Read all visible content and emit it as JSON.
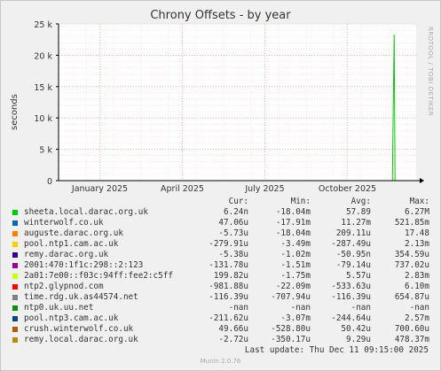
{
  "chart_data": {
    "type": "line",
    "title": "Chrony Offsets - by year",
    "ylabel": "seconds",
    "ylim": [
      0,
      25000
    ],
    "yticks": [
      0,
      5000,
      10000,
      15000,
      20000,
      25000
    ],
    "ytick_labels": [
      "0",
      "5 k",
      "10 k",
      "15 k",
      "20 k",
      "25 k"
    ],
    "xlim_months": [
      0,
      13
    ],
    "xticks": [
      {
        "label": "January 2025",
        "month": 1.5
      },
      {
        "label": "April 2025",
        "month": 4.5
      },
      {
        "label": "July 2025",
        "month": 7.5
      },
      {
        "label": "October 2025",
        "month": 10.5
      }
    ],
    "grid": true,
    "series": [
      {
        "name": "sheeta.local.darac.org.uk",
        "color": "#00cc00",
        "spike_month": 12.2,
        "spike_value": 23300
      }
    ]
  },
  "side_label": "RRDTOOL / TOBI OETIKER",
  "legend_header": {
    "cur": "Cur:",
    "min": "Min:",
    "avg": "Avg:",
    "max": "Max:"
  },
  "legend": [
    {
      "name": "sheeta.local.darac.org.uk",
      "color": "#00cc00",
      "cur": "6.24n",
      "min": "-18.04m",
      "avg": "57.89",
      "max": "6.27M"
    },
    {
      "name": "winterwolf.co.uk",
      "color": "#0066b3",
      "cur": "47.06u",
      "min": "-17.91m",
      "avg": "11.27m",
      "max": "521.85m"
    },
    {
      "name": "auguste.darac.org.uk",
      "color": "#ff8000",
      "cur": "-5.73u",
      "min": "-18.04m",
      "avg": "209.11u",
      "max": "17.48"
    },
    {
      "name": "pool.ntp1.cam.ac.uk",
      "color": "#ffcc00",
      "cur": "-279.91u",
      "min": "-3.49m",
      "avg": "-287.49u",
      "max": "2.13m"
    },
    {
      "name": "remy.darac.org.uk",
      "color": "#330099",
      "cur": "-5.38u",
      "min": "-1.02m",
      "avg": "-50.95n",
      "max": "354.59u"
    },
    {
      "name": "2001:470:1f1c:298::2:123",
      "color": "#990099",
      "cur": "-131.78u",
      "min": "-1.51m",
      "avg": "-79.14u",
      "max": "737.02u"
    },
    {
      "name": "2a01:7e00::f03c:94ff:fee2:c5ff",
      "color": "#ccff00",
      "cur": "199.82u",
      "min": "-1.75m",
      "avg": "5.57u",
      "max": "2.83m"
    },
    {
      "name": "ntp2.glypnod.com",
      "color": "#ff0000",
      "cur": "-981.88u",
      "min": "-22.09m",
      "avg": "-533.63u",
      "max": "6.10m"
    },
    {
      "name": "time.rdg.uk.as44574.net",
      "color": "#808080",
      "cur": "-116.39u",
      "min": "-707.94u",
      "avg": "-116.39u",
      "max": "654.87u"
    },
    {
      "name": "ntp0.uk.uu.net",
      "color": "#008f00",
      "cur": "-nan",
      "min": "-nan",
      "avg": "-nan",
      "max": "-nan"
    },
    {
      "name": "pool.ntp3.cam.ac.uk",
      "color": "#00487d",
      "cur": "-211.62u",
      "min": "-3.07m",
      "avg": "-244.64u",
      "max": "2.57m"
    },
    {
      "name": "crush.winterwolf.co.uk",
      "color": "#b35a00",
      "cur": "49.66u",
      "min": "-528.80u",
      "avg": "50.42u",
      "max": "700.60u"
    },
    {
      "name": "remy.local.darac.org.uk",
      "color": "#b38f00",
      "cur": "-2.72u",
      "min": "-350.17u",
      "avg": "9.29u",
      "max": "478.37m"
    }
  ],
  "last_update": "Last update: Thu Dec 11 09:15:00 2025",
  "footer": "Munin 2.0.76"
}
